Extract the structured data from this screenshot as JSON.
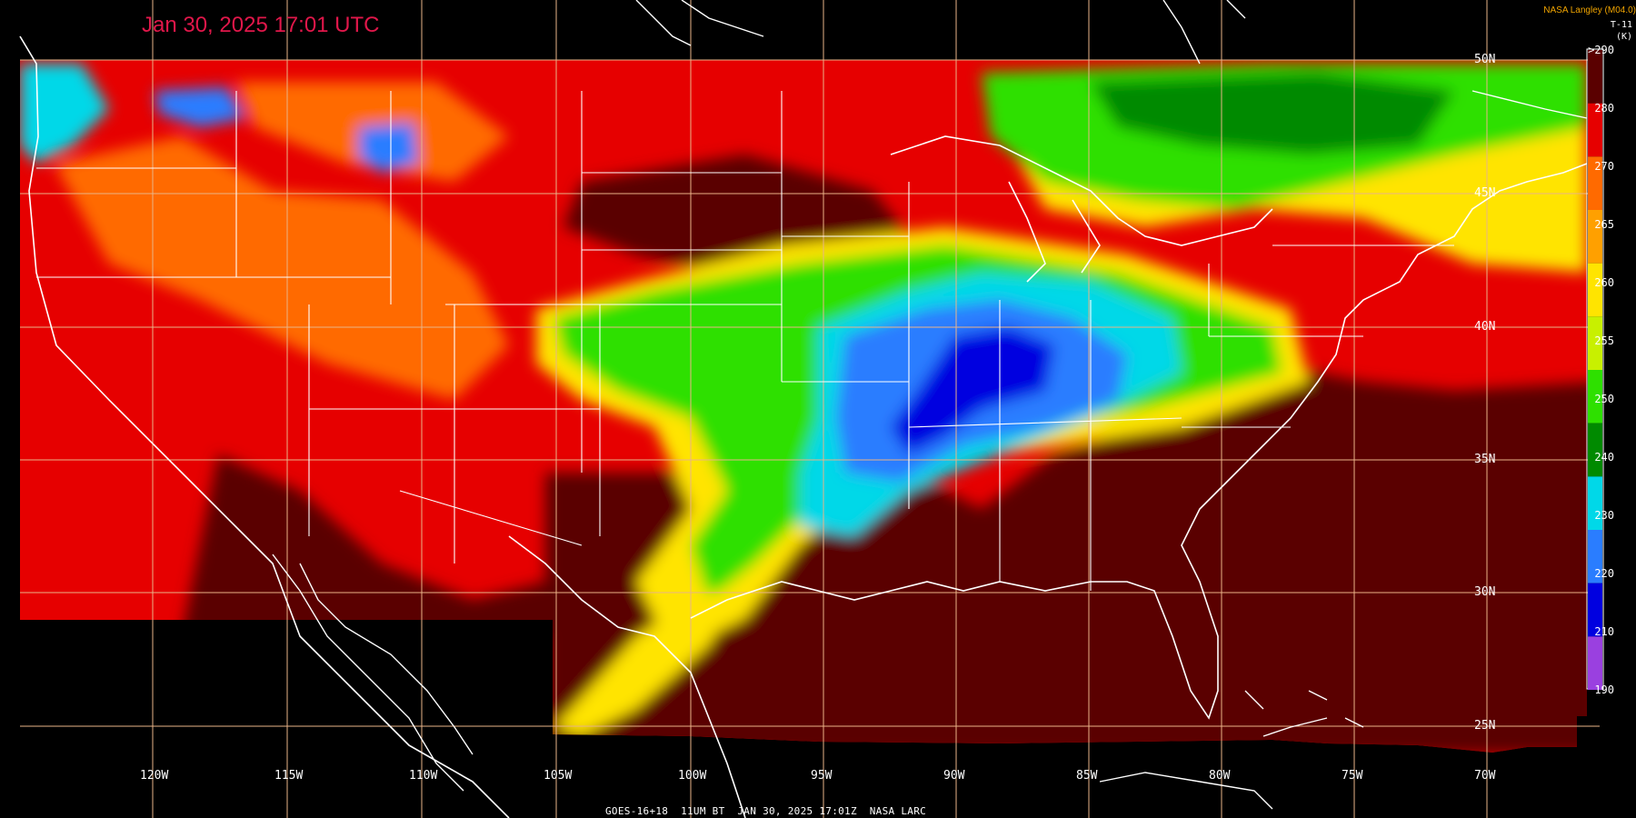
{
  "header": {
    "timestamp": "Jan 30, 2025 17:01 UTC",
    "credit": "NASA Langley (M04.0)",
    "product": "T-11",
    "unit": "(K)"
  },
  "footer": {
    "caption": "GOES-16+18  11UM BT  JAN 30, 2025 17:01Z  NASA LARC"
  },
  "longitude_labels": [
    "120W",
    "115W",
    "110W",
    "105W",
    "100W",
    "95W",
    "90W",
    "85W",
    "80W",
    "75W",
    "70W"
  ],
  "latitude_labels": [
    "50N",
    "45N",
    "40N",
    "35N",
    "30N",
    "25N"
  ],
  "legend": {
    "labels": [
      ">290",
      "280",
      "270",
      "265",
      "260",
      "255",
      "250",
      "240",
      "230",
      "220",
      "210",
      "190"
    ],
    "colors": [
      "#5a0000",
      "#e60000",
      "#ff6a00",
      "#ffa000",
      "#ffe400",
      "#c8f000",
      "#2ee000",
      "#008a00",
      "#00d8e8",
      "#2a7dff",
      "#0000e0",
      "#9a40e0"
    ]
  },
  "map_colors": {
    "very_warm": "#5a0000",
    "warm": "#e60000",
    "mild": "#ff6a00",
    "cool": "#ffe400",
    "cold_green": "#2ee000",
    "cold_dark_green": "#008a00",
    "very_cold_cyan": "#00d8e8",
    "very_cold_blue": "#2a7dff",
    "coldest": "#0000e0",
    "grid": "#e9b489",
    "outline": "#ffffff"
  }
}
